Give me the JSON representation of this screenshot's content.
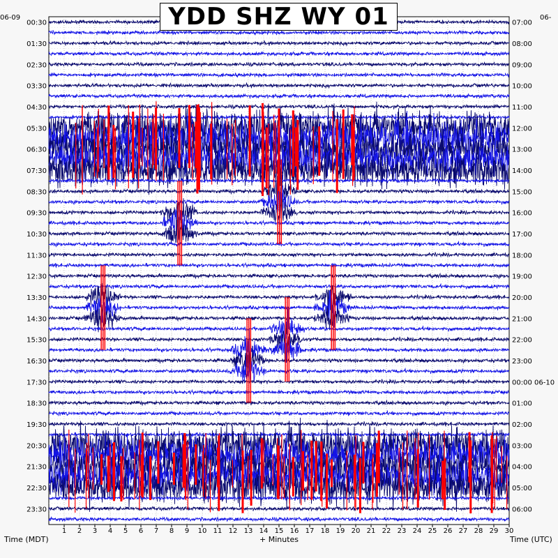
{
  "title": "YDD SHZ WY 01",
  "left_date": "06-09",
  "right_date": "06-",
  "left_axis_title": "Time (MDT)",
  "bottom_axis_title": "+ Minutes",
  "right_axis_title": "Time (UTC)",
  "colors": {
    "navy": "#0a0a6e",
    "blue": "#1414e6",
    "red": "#ff0000",
    "grid": "#9a9a9a"
  },
  "chart_data": {
    "type": "line",
    "title": "YDD SHZ WY 01",
    "xlabel": "+ Minutes",
    "ylabel_left": "Time (MDT)",
    "ylabel_right": "Time (UTC)",
    "xlim": [
      0,
      30
    ],
    "x_ticks": [
      "1",
      "2",
      "3",
      "4",
      "5",
      "6",
      "7",
      "8",
      "9",
      "10",
      "11",
      "12",
      "13",
      "14",
      "15",
      "16",
      "17",
      "18",
      "19",
      "20",
      "21",
      "22",
      "23",
      "24",
      "25",
      "26",
      "27",
      "28",
      "29",
      "30"
    ],
    "left_ticks": [
      "00:30",
      "01:30",
      "02:30",
      "03:30",
      "04:30",
      "05:30",
      "06:30",
      "07:30",
      "08:30",
      "09:30",
      "10:30",
      "11:30",
      "12:30",
      "13:30",
      "14:30",
      "15:30",
      "16:30",
      "17:30",
      "18:30",
      "19:30",
      "20:30",
      "21:30",
      "22:30",
      "23:30"
    ],
    "right_ticks": [
      "07:00",
      "08:00",
      "09:00",
      "10:00",
      "11:00",
      "12:00",
      "13:00",
      "14:00",
      "15:00",
      "16:00",
      "17:00",
      "18:00",
      "19:00",
      "20:00",
      "21:00",
      "22:00",
      "23:00",
      "00:00 06-10",
      "01:00",
      "02:00",
      "03:00",
      "04:00",
      "05:00",
      "06:00"
    ],
    "traces_per_hour": 2,
    "trace_minutes": 30,
    "color_cycle": [
      "navy",
      "blue"
    ],
    "grid": true,
    "series": [
      {
        "label": "heavy noise",
        "start_row": 10,
        "end_row": 14,
        "x_range": [
          0,
          30
        ],
        "level": 1.0
      },
      {
        "label": "heavy noise",
        "start_row": 40,
        "end_row": 44,
        "x_range": [
          0,
          30
        ],
        "level": 1.0
      },
      {
        "label": "clipped",
        "start_row": 9,
        "end_row": 15,
        "x_range": [
          1.5,
          20
        ],
        "level": "clipped"
      },
      {
        "label": "clipped",
        "start_row": 40,
        "end_row": 45,
        "x_range": [
          1,
          30
        ],
        "level": "clipped"
      },
      {
        "label": "event",
        "row": 17,
        "x": 15,
        "level": 0.8
      },
      {
        "label": "event",
        "row": 19,
        "x": 8.5,
        "level": 0.9
      },
      {
        "label": "event",
        "row": 27,
        "x": 3.5,
        "level": 0.8
      },
      {
        "label": "event",
        "row": 27,
        "x": 18.5,
        "level": 0.8
      },
      {
        "label": "event",
        "row": 30,
        "x": 15.5,
        "level": 0.8
      },
      {
        "label": "event",
        "row": 32,
        "x": 13,
        "level": 0.8
      }
    ]
  }
}
